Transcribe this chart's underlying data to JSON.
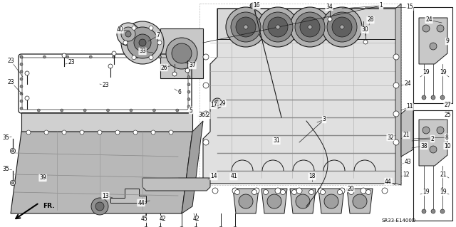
{
  "figsize": [
    6.4,
    3.19
  ],
  "dpi": 100,
  "background_color": "#ffffff",
  "line_color": "#1a1a1a",
  "text_color": "#000000",
  "diagram_ref": "SR33-E1400D",
  "fr_label": "FR.",
  "gray_fill": "#c8c8c8",
  "light_gray": "#e0e0e0",
  "mid_gray": "#aaaaaa",
  "dark_gray": "#555555"
}
